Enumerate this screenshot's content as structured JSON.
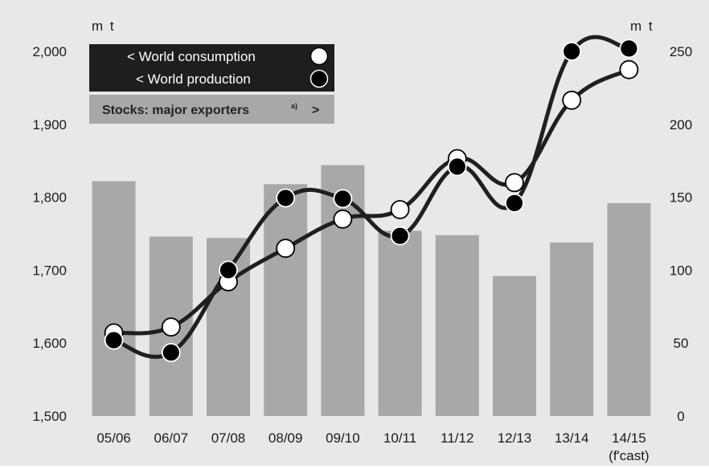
{
  "colors": {
    "background": "#ffffff",
    "plot_background": "#e8e8e8",
    "bar": "#a8a8a8",
    "line": "#1f1f1f",
    "consumption_marker": "#ffffff",
    "production_marker": "#000000",
    "legend_dark": "#1e1e1e",
    "legend_light": "#a8a8a8"
  },
  "legend": {
    "consumption": "< World consumption",
    "production": "< World production",
    "stocks": "Stocks: major exporters",
    "stocks_sup": "a)",
    "stocks_arrow": ">"
  },
  "chart_data": {
    "type": "bar+line",
    "categories": [
      "05/06",
      "06/07",
      "07/08",
      "08/09",
      "09/10",
      "10/11",
      "11/12",
      "12/13",
      "13/14",
      "14/15"
    ],
    "x_tick_labels": [
      "05/06",
      "06/07",
      "07/08",
      "08/09",
      "09/10",
      "10/11",
      "11/12",
      "12/13",
      "13/14",
      "14/15"
    ],
    "x_tick_sublabel": "(f'cast)",
    "y_left": {
      "unit": "m t",
      "lim": [
        1500,
        2050
      ],
      "ticks": [
        1500,
        1600,
        1700,
        1800,
        1900,
        2000
      ],
      "tick_labels": [
        "1,500",
        "1,600",
        "1,700",
        "1,800",
        "1,900",
        "2,000"
      ]
    },
    "y_right": {
      "unit": "m t",
      "lim": [
        0,
        275
      ],
      "ticks": [
        0,
        50,
        100,
        150,
        200,
        250
      ],
      "tick_labels": [
        "0",
        "50",
        "100",
        "150",
        "200",
        "250"
      ]
    },
    "series": [
      {
        "name": "Stocks: major exporters",
        "type": "bar",
        "axis": "right",
        "values": [
          161,
          123,
          122,
          159,
          172,
          127,
          124,
          96,
          119,
          146
        ]
      },
      {
        "name": "World consumption",
        "type": "line",
        "axis": "left",
        "marker": "white",
        "values": [
          1614,
          1622,
          1684,
          1730,
          1770,
          1783,
          1853,
          1820,
          1933,
          1975
        ]
      },
      {
        "name": "World production",
        "type": "line",
        "axis": "left",
        "marker": "black",
        "values": [
          1604,
          1587,
          1700,
          1799,
          1798,
          1747,
          1842,
          1792,
          2000,
          2004
        ]
      }
    ],
    "grid": false,
    "legend_position": "top-left"
  }
}
